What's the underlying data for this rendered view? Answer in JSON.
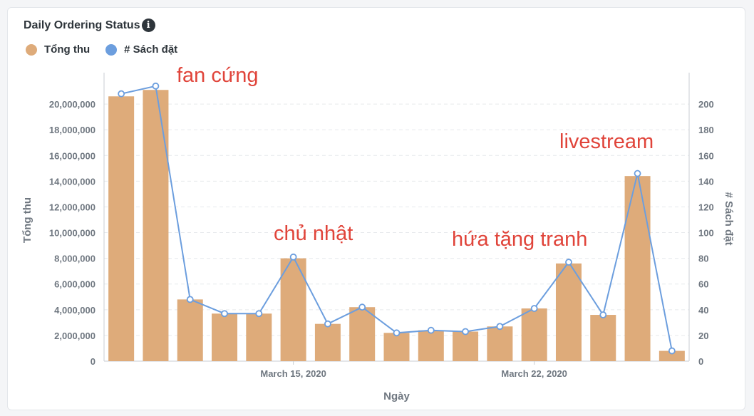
{
  "header": {
    "title": "Daily Ordering Status",
    "info_icon": "info-icon"
  },
  "colors": {
    "bar": "#deab7a",
    "line": "#6c9ede",
    "grid": "#e6e9ec",
    "annotation": "#e0443a",
    "tick": "#6f7780"
  },
  "chart_data": {
    "type": "bar",
    "title": "Daily Ordering Status",
    "xlabel": "Ngày",
    "ylabel": "Tổng thu",
    "y2label": "# Sách đặt",
    "legend_position": "top-left",
    "grid": true,
    "ylim": [
      0,
      22000000
    ],
    "y2lim": [
      0,
      220
    ],
    "x_tick_labels": [
      {
        "index": 5,
        "label": "March 15, 2020"
      },
      {
        "index": 12,
        "label": "March 22, 2020"
      }
    ],
    "y_ticks": [
      "0",
      "2,000,000",
      "4,000,000",
      "6,000,000",
      "8,000,000",
      "10,000,000",
      "12,000,000",
      "14,000,000",
      "16,000,000",
      "18,000,000",
      "20,000,000"
    ],
    "y2_ticks": [
      "0",
      "20",
      "40",
      "60",
      "80",
      "100",
      "120",
      "140",
      "160",
      "180",
      "200"
    ],
    "series": [
      {
        "name": "Tổng thu",
        "type": "bar",
        "axis": "left",
        "values": [
          20600000,
          21100000,
          4800000,
          3700000,
          3700000,
          8000000,
          2900000,
          4200000,
          2200000,
          2400000,
          2300000,
          2700000,
          4100000,
          7600000,
          3600000,
          14400000,
          800000
        ]
      },
      {
        "name": "# Sách đặt",
        "type": "line",
        "axis": "right",
        "values": [
          208,
          214,
          48,
          37,
          37,
          81,
          29,
          42,
          22,
          24,
          23,
          27,
          41,
          77,
          36,
          146,
          8
        ]
      }
    ],
    "annotations": [
      {
        "text": "fan cứng",
        "index": 1
      },
      {
        "text": "chủ nhật",
        "index": 5
      },
      {
        "text": "hứa tặng tranh",
        "index": 13
      },
      {
        "text": "livestream",
        "index": 15
      }
    ]
  }
}
